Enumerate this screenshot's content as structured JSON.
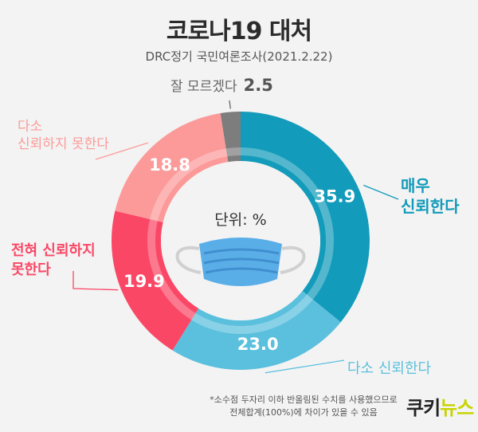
{
  "header": {
    "title": "코로나19 대처",
    "subtitle": "DRC정기 국민여론조사(2021.2.22)"
  },
  "chart_data": {
    "type": "pie",
    "categories": [
      "매우 신뢰한다",
      "다소 신뢰한다",
      "전혀 신뢰하지 못한다",
      "다소 신뢰하지 못한다",
      "잘 모르겠다"
    ],
    "values": [
      35.9,
      23.0,
      19.9,
      18.8,
      2.5
    ],
    "value_labels": [
      "35.9",
      "23.0",
      "19.9",
      "18.8",
      "2.5"
    ],
    "category_label_lines": [
      [
        "매우",
        "신뢰한다"
      ],
      [
        "다소 신뢰한다"
      ],
      [
        "전혀 신뢰하지",
        "못한다"
      ],
      [
        "다소",
        "신뢰하지 못한다"
      ],
      [
        "잘 모르겠다"
      ]
    ],
    "colors": [
      "#129bba",
      "#5bc0dd",
      "#fa4766",
      "#fc9a9a",
      "#7d7d7d"
    ],
    "label_colors": [
      "#129bba",
      "#5bc0dd",
      "#fa4766",
      "#fc9a9a",
      "#666666"
    ],
    "center_label": "단위: %",
    "style": "donut"
  },
  "footnote": {
    "line1": "*소수점 두자리 이하 반올림된 수치를 사용했으므로",
    "line2": "전체합계(100%)에 차이가 있을 수 있음"
  },
  "logo": {
    "part1": "쿠키",
    "part2": "뉴스"
  }
}
